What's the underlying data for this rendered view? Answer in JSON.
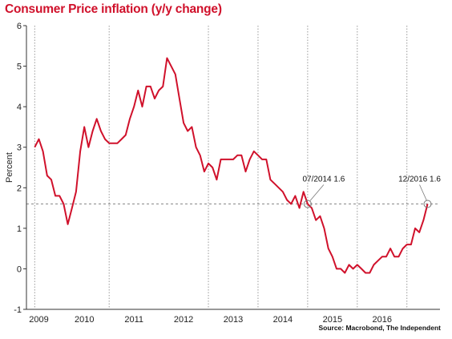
{
  "title": "Consumer Price inflation (y/y change)",
  "source": "Source: Macrobond, The Independent",
  "colors": {
    "title": "#d0112b",
    "line": "#d0112b",
    "grid": "#999999",
    "reference": "#888888"
  },
  "chart_data": {
    "type": "line",
    "title": "Consumer Price inflation (y/y change)",
    "xlabel": "",
    "ylabel": "Percent",
    "xlim": [
      "2008-11",
      "2017-03"
    ],
    "ylim": [
      -1,
      6
    ],
    "yticks": [
      -1,
      0,
      1,
      2,
      3,
      4,
      5,
      6
    ],
    "xtick_labels": [
      "2009",
      "2010",
      "2011",
      "2012",
      "2013",
      "2014",
      "2015",
      "2016"
    ],
    "xtick_dates": [
      "2009-02",
      "2010-01",
      "2011-01",
      "2012-01",
      "2013-01",
      "2014-01",
      "2015-01",
      "2016-01"
    ],
    "gridlines_x": [
      "2009-01",
      "2010-07",
      "2012-07",
      "2013-07",
      "2014-07",
      "2015-07",
      "2016-07"
    ],
    "grid": true,
    "reference_line": {
      "y": 1.6,
      "style": "dashed"
    },
    "annotations": [
      {
        "x": "2014-07",
        "y": 1.6,
        "text": "07/2014 1.6"
      },
      {
        "x": "2016-12",
        "y": 1.6,
        "text": "12/2016 1.6"
      }
    ],
    "series": [
      {
        "x": [
          "2009-01",
          "2009-02",
          "2009-03",
          "2009-04",
          "2009-05",
          "2009-06",
          "2009-07",
          "2009-08",
          "2009-09",
          "2009-10",
          "2009-11",
          "2009-12",
          "2010-01",
          "2010-02",
          "2010-03",
          "2010-04",
          "2010-05",
          "2010-06",
          "2010-07",
          "2010-08",
          "2010-09",
          "2010-10",
          "2010-11",
          "2010-12",
          "2011-01",
          "2011-02",
          "2011-03",
          "2011-04",
          "2011-05",
          "2011-06",
          "2011-07",
          "2011-08",
          "2011-09",
          "2011-10",
          "2011-11",
          "2011-12",
          "2012-01",
          "2012-02",
          "2012-03",
          "2012-04",
          "2012-05",
          "2012-06",
          "2012-07",
          "2012-08",
          "2012-09",
          "2012-10",
          "2012-11",
          "2012-12",
          "2013-01",
          "2013-02",
          "2013-03",
          "2013-04",
          "2013-05",
          "2013-06",
          "2013-07",
          "2013-08",
          "2013-09",
          "2013-10",
          "2013-11",
          "2013-12",
          "2014-01",
          "2014-02",
          "2014-03",
          "2014-04",
          "2014-05",
          "2014-06",
          "2014-07",
          "2014-08",
          "2014-09",
          "2014-10",
          "2014-11",
          "2014-12",
          "2015-01",
          "2015-02",
          "2015-03",
          "2015-04",
          "2015-05",
          "2015-06",
          "2015-07",
          "2015-08",
          "2015-09",
          "2015-10",
          "2015-11",
          "2015-12",
          "2016-01",
          "2016-02",
          "2016-03",
          "2016-04",
          "2016-05",
          "2016-06",
          "2016-07",
          "2016-08",
          "2016-09",
          "2016-10",
          "2016-11",
          "2016-12"
        ],
        "values": [
          3.0,
          3.2,
          2.9,
          2.3,
          2.2,
          1.8,
          1.8,
          1.6,
          1.1,
          1.5,
          1.9,
          2.9,
          3.5,
          3.0,
          3.4,
          3.7,
          3.4,
          3.2,
          3.1,
          3.1,
          3.1,
          3.2,
          3.3,
          3.7,
          4.0,
          4.4,
          4.0,
          4.5,
          4.5,
          4.2,
          4.4,
          4.5,
          5.2,
          5.0,
          4.8,
          4.2,
          3.6,
          3.4,
          3.5,
          3.0,
          2.8,
          2.4,
          2.6,
          2.5,
          2.2,
          2.7,
          2.7,
          2.7,
          2.7,
          2.8,
          2.8,
          2.4,
          2.7,
          2.9,
          2.8,
          2.7,
          2.7,
          2.2,
          2.1,
          2.0,
          1.9,
          1.7,
          1.6,
          1.8,
          1.5,
          1.9,
          1.6,
          1.5,
          1.2,
          1.3,
          1.0,
          0.5,
          0.3,
          0.0,
          0.0,
          -0.1,
          0.1,
          0.0,
          0.1,
          0.0,
          -0.1,
          -0.1,
          0.1,
          0.2,
          0.3,
          0.3,
          0.5,
          0.3,
          0.3,
          0.5,
          0.6,
          0.6,
          1.0,
          0.9,
          1.2,
          1.6
        ]
      }
    ]
  }
}
